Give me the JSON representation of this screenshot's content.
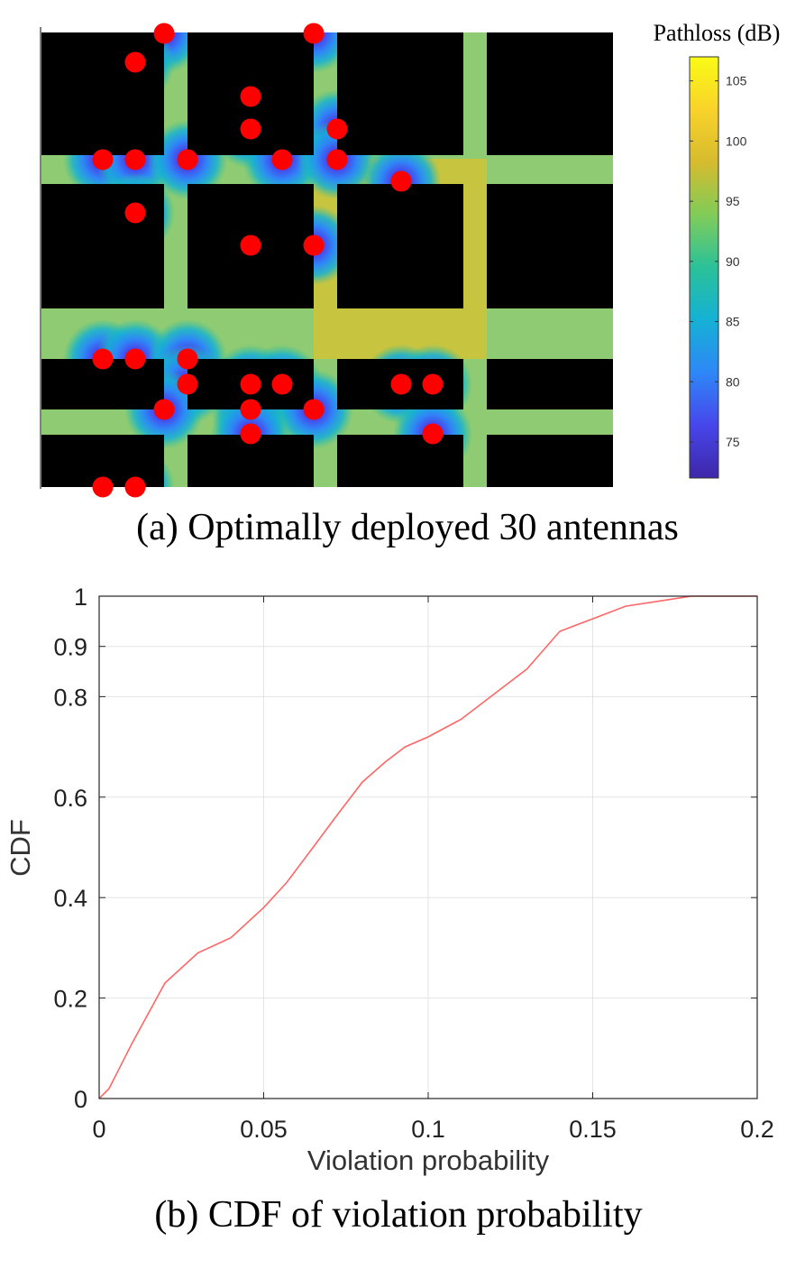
{
  "chart_data": [
    {
      "type": "heatmap",
      "caption": "(a) Optimally deployed 30 antennas",
      "colorbar": {
        "title": "Pathloss (dB)",
        "range": [
          72,
          107
        ],
        "ticks": [
          75,
          80,
          85,
          90,
          95,
          100,
          105
        ],
        "colormap": "parula",
        "colors": [
          "#3e26a8",
          "#4746eb",
          "#2e87f7",
          "#15b1d5",
          "#2bc199",
          "#81cc59",
          "#d6bb2e",
          "#f9d32a",
          "#f9fb15"
        ]
      },
      "building_color": "#000000",
      "antenna_marker_color": "#ff0000",
      "antennas": [
        {
          "x": 3,
          "y": 1
        },
        {
          "x": 7,
          "y": 1
        },
        {
          "x": 2,
          "y": 2
        },
        {
          "x": 5,
          "y": 3
        },
        {
          "x": 5,
          "y": 4
        },
        {
          "x": 8,
          "y": 4
        },
        {
          "x": 1,
          "y": 5
        },
        {
          "x": 2,
          "y": 5
        },
        {
          "x": 4,
          "y": 5
        },
        {
          "x": 6,
          "y": 5
        },
        {
          "x": 8,
          "y": 5
        },
        {
          "x": 9,
          "y": 6
        },
        {
          "x": 2,
          "y": 7
        },
        {
          "x": 5,
          "y": 8
        },
        {
          "x": 7,
          "y": 8
        },
        {
          "x": 1,
          "y": 10
        },
        {
          "x": 2,
          "y": 10
        },
        {
          "x": 4,
          "y": 10
        },
        {
          "x": 4,
          "y": 11
        },
        {
          "x": 5,
          "y": 11
        },
        {
          "x": 6,
          "y": 11
        },
        {
          "x": 9,
          "y": 11
        },
        {
          "x": 10,
          "y": 11
        },
        {
          "x": 3,
          "y": 12
        },
        {
          "x": 5,
          "y": 12
        },
        {
          "x": 7,
          "y": 12
        },
        {
          "x": 5,
          "y": 13
        },
        {
          "x": 10,
          "y": 13
        },
        {
          "x": 1,
          "y": 14
        },
        {
          "x": 2,
          "y": 14
        }
      ]
    },
    {
      "type": "line",
      "caption": "(b) CDF of violation probability",
      "xlabel": "Violation probability",
      "ylabel": "CDF",
      "xlim": [
        0,
        0.2
      ],
      "ylim": [
        0,
        1
      ],
      "xticks": [
        0,
        0.05,
        0.1,
        0.15,
        0.2
      ],
      "xtick_labels": [
        "0",
        "0.05",
        "0.1",
        "0.15",
        "0.2"
      ],
      "yticks": [
        0,
        0.2,
        0.4,
        0.6,
        0.8,
        0.9,
        1
      ],
      "ytick_labels": [
        "0",
        "0.2",
        "0.4",
        "0.6",
        "0.8",
        "0.9",
        "1"
      ],
      "grid": true,
      "line_color": "#ff6666",
      "series": [
        {
          "x": [
            0,
            0.003,
            0.01,
            0.02,
            0.03,
            0.04,
            0.05,
            0.057,
            0.065,
            0.073,
            0.08,
            0.087,
            0.093,
            0.1,
            0.11,
            0.12,
            0.13,
            0.14,
            0.15,
            0.16,
            0.17,
            0.18,
            0.2
          ],
          "y": [
            0,
            0.02,
            0.11,
            0.23,
            0.29,
            0.32,
            0.38,
            0.43,
            0.5,
            0.57,
            0.63,
            0.67,
            0.7,
            0.72,
            0.755,
            0.805,
            0.855,
            0.93,
            0.955,
            0.98,
            0.99,
            1,
            1
          ]
        }
      ]
    }
  ]
}
